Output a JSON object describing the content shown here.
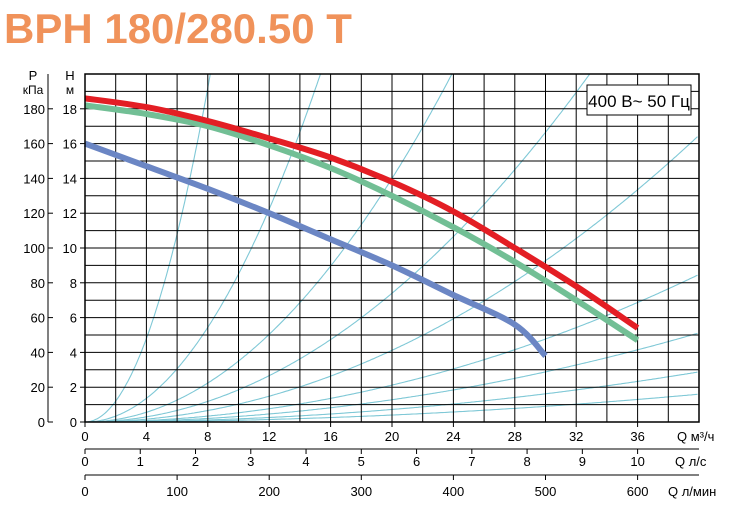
{
  "chart_data": {
    "type": "line",
    "title": "BPH 180/280.50 T",
    "annotation": "400 В~ 50 Гц",
    "colors": {
      "title": "#f0925a",
      "series": [
        "#e31e24",
        "#72bf95",
        "#6b86c4"
      ],
      "system_curves": "#7fc8d6",
      "grid": "#000000",
      "frame": "#000000"
    },
    "left_axes": {
      "pressure": {
        "label": "P",
        "unit": "кПа",
        "ticks": [
          "0",
          "20",
          "40",
          "60",
          "80",
          "100",
          "120",
          "140",
          "160",
          "180"
        ]
      },
      "head": {
        "label": "Н",
        "unit": "м",
        "ticks": [
          "0",
          "2",
          "4",
          "6",
          "8",
          "10",
          "12",
          "14",
          "16",
          "18"
        ]
      }
    },
    "bottom_axes": {
      "flow_m3h": {
        "label": "Q м³/ч",
        "ticks": [
          "0",
          "4",
          "8",
          "12",
          "16",
          "20",
          "24",
          "28",
          "32",
          "36"
        ]
      },
      "flow_ls": {
        "label": "Q л/с",
        "ticks": [
          "0",
          "1",
          "2",
          "3",
          "4",
          "5",
          "6",
          "7",
          "8",
          "9",
          "10"
        ]
      },
      "flow_lmin": {
        "label": "Q л/мин",
        "ticks": [
          "0",
          "100",
          "200",
          "300",
          "400",
          "500",
          "600"
        ]
      }
    },
    "xlim": [
      0,
      40
    ],
    "ylim": [
      0,
      20
    ],
    "series": [
      {
        "x": [
          0,
          4,
          8,
          12,
          16,
          20,
          24,
          28,
          32,
          36
        ],
        "y": [
          18.6,
          18.1,
          17.3,
          16.3,
          15.2,
          13.8,
          12.1,
          10.0,
          7.8,
          5.4
        ]
      },
      {
        "x": [
          0,
          4,
          8,
          12,
          16,
          20,
          24,
          28,
          32,
          36
        ],
        "y": [
          18.2,
          17.7,
          17.0,
          15.9,
          14.6,
          13.0,
          11.2,
          9.2,
          7.0,
          4.7
        ]
      },
      {
        "x": [
          0,
          4,
          8,
          12,
          16,
          20,
          24,
          28,
          30
        ],
        "y": [
          16.0,
          14.7,
          13.4,
          12.0,
          10.5,
          9.0,
          7.3,
          5.6,
          3.8
        ]
      }
    ],
    "system_curves_k": [
      0.3,
      0.085,
      0.035,
      0.0185,
      0.0103,
      0.0053,
      0.0032,
      0.0018,
      0.001
    ]
  }
}
